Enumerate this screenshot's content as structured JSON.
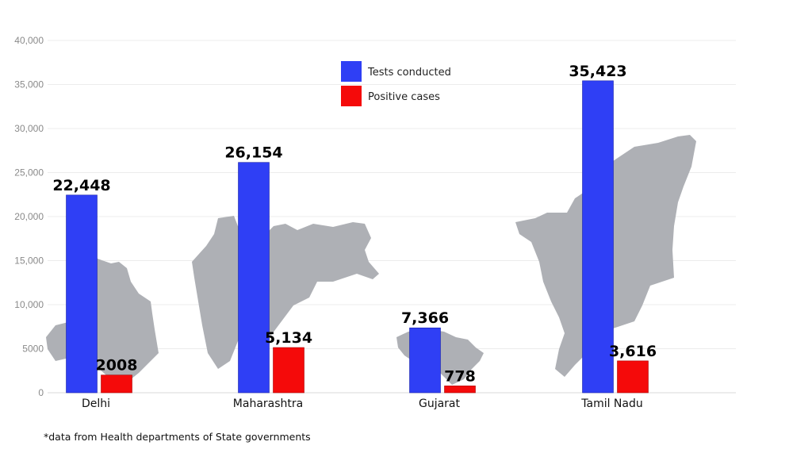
{
  "chart_data": {
    "type": "bar",
    "title": "",
    "xlabel": "",
    "ylabel": "",
    "categories": [
      "Delhi",
      "Maharashtra",
      "Gujarat",
      "Tamil Nadu"
    ],
    "series": [
      {
        "name": "Tests conducted",
        "color": "#2f3ff5",
        "values": [
          22448,
          26154,
          7366,
          35423
        ],
        "labels": [
          "22,448",
          "26,154",
          "7,366",
          "35,423"
        ]
      },
      {
        "name": "Positive cases",
        "color": "#f50a0a",
        "values": [
          2008,
          5134,
          778,
          3616
        ],
        "labels": [
          "2008",
          "5,134",
          "778",
          "3,616"
        ]
      }
    ],
    "ylim": [
      0,
      40000
    ],
    "yticks": [
      0,
      5000,
      10000,
      15000,
      20000,
      25000,
      30000,
      35000,
      40000
    ],
    "ytick_labels": [
      "0",
      "5000",
      "10,000",
      "15,000",
      "20,000",
      "25,000",
      "30,000",
      "35,000",
      "40,000"
    ],
    "grid": true,
    "legend": "top-center",
    "background_maps": [
      "Delhi",
      "Maharashtra",
      "Gujarat",
      "Tamil Nadu"
    ]
  },
  "footnote": "*data from Health departments of State governments"
}
